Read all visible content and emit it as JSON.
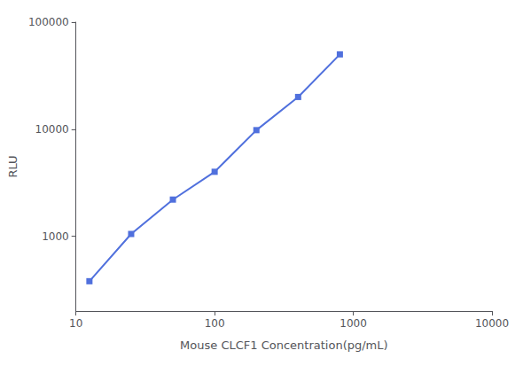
{
  "chart_data": {
    "type": "line",
    "x": [
      12.5,
      25,
      50,
      100,
      200,
      400,
      800
    ],
    "values": [
      380,
      1050,
      2200,
      4000,
      9800,
      20000,
      50000
    ],
    "xlabel": "Mouse CLCF1 Concentration(pg/mL)",
    "ylabel": "RLU",
    "xlim": [
      10,
      10000
    ],
    "ylim": [
      200,
      100000
    ],
    "xticks": [
      10,
      100,
      1000,
      10000
    ],
    "yticks": [
      1000,
      10000,
      100000
    ],
    "log": true,
    "grid": false,
    "marker": "square",
    "line_style": "solid"
  }
}
